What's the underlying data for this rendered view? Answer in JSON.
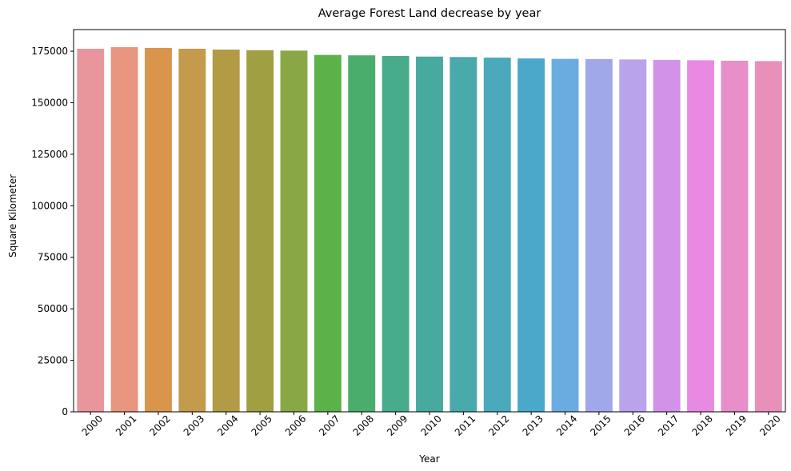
{
  "chart_data": {
    "type": "bar",
    "title": "Average Forest Land decrease by year",
    "xlabel": "Year",
    "ylabel": "Square Kilometer",
    "categories": [
      "2000",
      "2001",
      "2002",
      "2003",
      "2004",
      "2005",
      "2006",
      "2007",
      "2008",
      "2009",
      "2010",
      "2011",
      "2012",
      "2013",
      "2014",
      "2015",
      "2016",
      "2017",
      "2018",
      "2019",
      "2020"
    ],
    "values": [
      176200,
      177000,
      176600,
      176200,
      175800,
      175500,
      175300,
      173200,
      173000,
      172700,
      172400,
      172200,
      171900,
      171500,
      171300,
      171200,
      171000,
      170800,
      170600,
      170400,
      170200
    ],
    "ylim": [
      0,
      185500
    ],
    "yticks": [
      0,
      25000,
      50000,
      75000,
      100000,
      125000,
      150000,
      175000
    ],
    "grid": false,
    "legend": "none",
    "colors": [
      "#e8969c",
      "#e8967f",
      "#d9954c",
      "#c49a4c",
      "#b29b44",
      "#a0a043",
      "#89a845",
      "#5cb248",
      "#4aad6b",
      "#47ac8c",
      "#48aa9e",
      "#4aa9aa",
      "#4aa9bb",
      "#4aa8cb",
      "#6aace0",
      "#a1a8ea",
      "#b9a3ea",
      "#d192e8",
      "#e88ae2",
      "#e88ec9",
      "#e890b8"
    ]
  }
}
